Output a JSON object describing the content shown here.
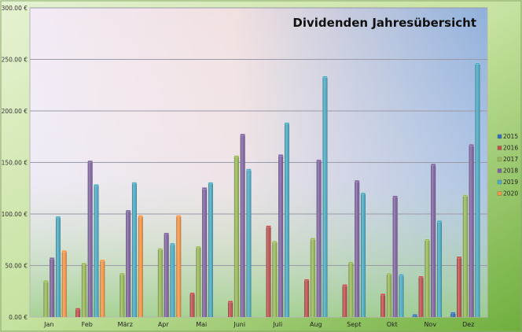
{
  "chart_data": {
    "type": "bar",
    "title": "Dividenden Jahresübersicht",
    "xlabel": "",
    "ylabel": "",
    "ylim": [
      0,
      300
    ],
    "yticks": [
      "0.00 €",
      "50.00 €",
      "100.00 €",
      "150.00 €",
      "200.00 €",
      "250.00 €",
      "300.00 €"
    ],
    "ytick_values": [
      0,
      50,
      100,
      150,
      200,
      250,
      300
    ],
    "grid": true,
    "legend_position": "right",
    "categories": [
      "Jan",
      "Feb",
      "März",
      "Apr",
      "Mai",
      "Juni",
      "Juli",
      "Aug",
      "Sept",
      "Okt",
      "Nov",
      "Dez"
    ],
    "series": [
      {
        "name": "2015",
        "color": "#2f6fbf",
        "values": [
          0,
          0,
          0,
          0,
          0,
          0,
          0,
          0,
          0,
          0,
          2,
          4
        ]
      },
      {
        "name": "2016",
        "color": "#c0504d",
        "values": [
          0,
          8,
          0,
          0,
          23,
          15,
          88,
          36,
          31,
          22,
          39,
          58
        ]
      },
      {
        "name": "2017",
        "color": "#9bbb59",
        "values": [
          35,
          52,
          42,
          66,
          68,
          156,
          73,
          76,
          53,
          42,
          75,
          118
        ]
      },
      {
        "name": "2018",
        "color": "#8064a2",
        "values": [
          57,
          151,
          103,
          81,
          125,
          177,
          157,
          152,
          132,
          117,
          148,
          167
        ]
      },
      {
        "name": "2019",
        "color": "#4bacc6",
        "values": [
          97,
          128,
          130,
          71,
          130,
          143,
          188,
          233,
          120,
          41,
          93,
          246
        ]
      },
      {
        "name": "2020",
        "color": "#f79646",
        "values": [
          64,
          55,
          98,
          98,
          0,
          0,
          0,
          0,
          0,
          0,
          0,
          0
        ]
      }
    ]
  }
}
